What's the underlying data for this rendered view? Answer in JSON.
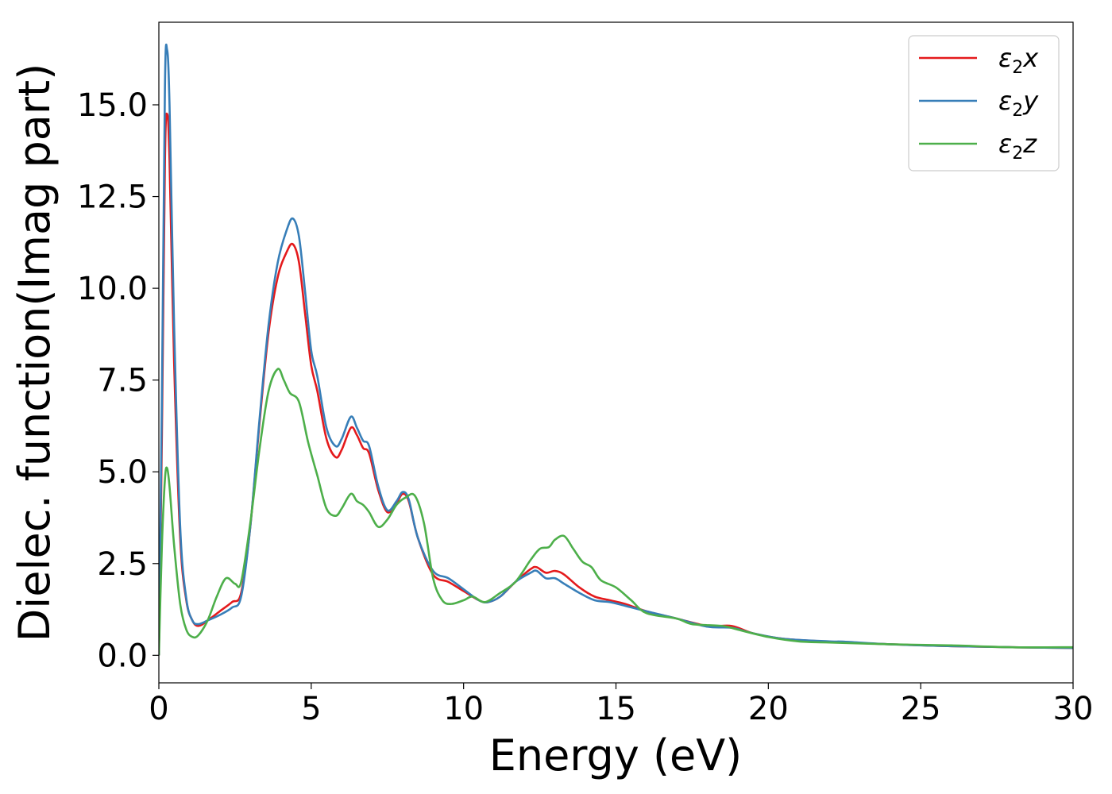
{
  "chart_data": {
    "type": "line",
    "xlabel": "Energy (eV)",
    "ylabel": "Dielec. function(Imag part)",
    "xlim": [
      0,
      30
    ],
    "ylim": [
      -0.75,
      17.25
    ],
    "xticks": [
      0,
      5,
      10,
      15,
      20,
      25,
      30
    ],
    "xtick_labels": [
      "0",
      "5",
      "10",
      "15",
      "20",
      "25",
      "30"
    ],
    "yticks": [
      0.0,
      2.5,
      5.0,
      7.5,
      10.0,
      12.5,
      15.0
    ],
    "ytick_labels": [
      "0.0",
      "2.5",
      "5.0",
      "7.5",
      "10.0",
      "12.5",
      "15.0"
    ],
    "grid": false,
    "legend_position": "top-right",
    "series": [
      {
        "name": "ε2x",
        "legend_base": "ε",
        "legend_sub": "2",
        "legend_tail": "x",
        "color": "#e41a1c",
        "points": [
          [
            0,
            0
          ],
          [
            0.1,
            6
          ],
          [
            0.2,
            13.5
          ],
          [
            0.27,
            14.75
          ],
          [
            0.35,
            13.5
          ],
          [
            0.5,
            8
          ],
          [
            0.7,
            3.2
          ],
          [
            0.9,
            1.5
          ],
          [
            1.1,
            0.95
          ],
          [
            1.3,
            0.8
          ],
          [
            1.6,
            0.95
          ],
          [
            2,
            1.2
          ],
          [
            2.4,
            1.45
          ],
          [
            2.7,
            1.7
          ],
          [
            3.0,
            3.5
          ],
          [
            3.3,
            6.3
          ],
          [
            3.6,
            8.8
          ],
          [
            3.9,
            10.3
          ],
          [
            4.2,
            11.0
          ],
          [
            4.4,
            11.2
          ],
          [
            4.6,
            10.7
          ],
          [
            4.8,
            9.3
          ],
          [
            5.0,
            7.9
          ],
          [
            5.2,
            7.2
          ],
          [
            5.5,
            5.9
          ],
          [
            5.8,
            5.4
          ],
          [
            6.0,
            5.6
          ],
          [
            6.3,
            6.2
          ],
          [
            6.5,
            6.0
          ],
          [
            6.7,
            5.65
          ],
          [
            6.9,
            5.5
          ],
          [
            7.2,
            4.5
          ],
          [
            7.5,
            3.9
          ],
          [
            7.8,
            4.15
          ],
          [
            8.0,
            4.4
          ],
          [
            8.2,
            4.2
          ],
          [
            8.5,
            3.2
          ],
          [
            9.0,
            2.2
          ],
          [
            9.5,
            2.0
          ],
          [
            10.0,
            1.75
          ],
          [
            10.5,
            1.5
          ],
          [
            10.8,
            1.45
          ],
          [
            11.2,
            1.6
          ],
          [
            11.7,
            2.0
          ],
          [
            12.2,
            2.35
          ],
          [
            12.4,
            2.4
          ],
          [
            12.7,
            2.25
          ],
          [
            13.0,
            2.3
          ],
          [
            13.3,
            2.2
          ],
          [
            13.8,
            1.85
          ],
          [
            14.3,
            1.6
          ],
          [
            14.8,
            1.5
          ],
          [
            15.3,
            1.4
          ],
          [
            16.0,
            1.2
          ],
          [
            17.0,
            1.0
          ],
          [
            18.0,
            0.8
          ],
          [
            18.8,
            0.8
          ],
          [
            19.5,
            0.6
          ],
          [
            20.5,
            0.45
          ],
          [
            22.0,
            0.37
          ],
          [
            22.5,
            0.35
          ],
          [
            24.0,
            0.3
          ],
          [
            26.0,
            0.25
          ],
          [
            28.0,
            0.22
          ],
          [
            30.0,
            0.2
          ]
        ]
      },
      {
        "name": "ε2y",
        "legend_base": "ε",
        "legend_sub": "2",
        "legend_tail": "y",
        "color": "#377eb8",
        "points": [
          [
            0,
            0
          ],
          [
            0.1,
            7
          ],
          [
            0.2,
            15.5
          ],
          [
            0.27,
            16.5
          ],
          [
            0.35,
            15
          ],
          [
            0.5,
            9
          ],
          [
            0.7,
            3.5
          ],
          [
            0.9,
            1.55
          ],
          [
            1.1,
            0.95
          ],
          [
            1.3,
            0.85
          ],
          [
            1.6,
            0.95
          ],
          [
            2,
            1.1
          ],
          [
            2.4,
            1.3
          ],
          [
            2.7,
            1.6
          ],
          [
            3.0,
            3.5
          ],
          [
            3.3,
            6.4
          ],
          [
            3.6,
            9.0
          ],
          [
            3.9,
            10.7
          ],
          [
            4.2,
            11.6
          ],
          [
            4.4,
            11.9
          ],
          [
            4.6,
            11.4
          ],
          [
            4.8,
            9.9
          ],
          [
            5.0,
            8.3
          ],
          [
            5.2,
            7.6
          ],
          [
            5.5,
            6.2
          ],
          [
            5.8,
            5.7
          ],
          [
            6.0,
            5.9
          ],
          [
            6.3,
            6.5
          ],
          [
            6.5,
            6.2
          ],
          [
            6.7,
            5.85
          ],
          [
            6.9,
            5.7
          ],
          [
            7.2,
            4.6
          ],
          [
            7.5,
            3.95
          ],
          [
            7.8,
            4.2
          ],
          [
            8.0,
            4.45
          ],
          [
            8.2,
            4.25
          ],
          [
            8.5,
            3.2
          ],
          [
            9.0,
            2.3
          ],
          [
            9.5,
            2.1
          ],
          [
            10.0,
            1.8
          ],
          [
            10.5,
            1.5
          ],
          [
            10.8,
            1.45
          ],
          [
            11.2,
            1.6
          ],
          [
            11.7,
            2.0
          ],
          [
            12.2,
            2.25
          ],
          [
            12.4,
            2.3
          ],
          [
            12.7,
            2.1
          ],
          [
            13.0,
            2.1
          ],
          [
            13.3,
            1.95
          ],
          [
            13.8,
            1.7
          ],
          [
            14.3,
            1.5
          ],
          [
            14.8,
            1.45
          ],
          [
            15.3,
            1.35
          ],
          [
            16.0,
            1.2
          ],
          [
            17.0,
            1.0
          ],
          [
            18.0,
            0.78
          ],
          [
            18.8,
            0.75
          ],
          [
            19.5,
            0.6
          ],
          [
            20.5,
            0.45
          ],
          [
            22.0,
            0.38
          ],
          [
            22.5,
            0.37
          ],
          [
            24.0,
            0.3
          ],
          [
            26.0,
            0.25
          ],
          [
            28.0,
            0.22
          ],
          [
            30.0,
            0.2
          ]
        ]
      },
      {
        "name": "ε2z",
        "legend_base": "ε",
        "legend_sub": "2",
        "legend_tail": "z",
        "color": "#4daf4a",
        "points": [
          [
            0,
            0
          ],
          [
            0.1,
            3
          ],
          [
            0.2,
            4.8
          ],
          [
            0.27,
            5.1
          ],
          [
            0.35,
            4.6
          ],
          [
            0.5,
            3
          ],
          [
            0.7,
            1.4
          ],
          [
            0.9,
            0.7
          ],
          [
            1.1,
            0.5
          ],
          [
            1.3,
            0.55
          ],
          [
            1.6,
            0.95
          ],
          [
            1.9,
            1.6
          ],
          [
            2.2,
            2.1
          ],
          [
            2.5,
            1.95
          ],
          [
            2.7,
            2.0
          ],
          [
            3.0,
            3.6
          ],
          [
            3.3,
            5.6
          ],
          [
            3.6,
            7.2
          ],
          [
            3.9,
            7.8
          ],
          [
            4.1,
            7.5
          ],
          [
            4.3,
            7.15
          ],
          [
            4.6,
            6.9
          ],
          [
            4.9,
            5.8
          ],
          [
            5.2,
            4.9
          ],
          [
            5.5,
            4.0
          ],
          [
            5.8,
            3.8
          ],
          [
            6.0,
            4.0
          ],
          [
            6.3,
            4.4
          ],
          [
            6.5,
            4.2
          ],
          [
            6.7,
            4.1
          ],
          [
            6.9,
            3.9
          ],
          [
            7.2,
            3.5
          ],
          [
            7.5,
            3.7
          ],
          [
            7.8,
            4.1
          ],
          [
            8.1,
            4.3
          ],
          [
            8.4,
            4.35
          ],
          [
            8.7,
            3.6
          ],
          [
            9.0,
            2.1
          ],
          [
            9.3,
            1.5
          ],
          [
            9.6,
            1.4
          ],
          [
            10.0,
            1.5
          ],
          [
            10.3,
            1.6
          ],
          [
            10.7,
            1.45
          ],
          [
            11.2,
            1.7
          ],
          [
            11.7,
            2.0
          ],
          [
            12.2,
            2.6
          ],
          [
            12.5,
            2.9
          ],
          [
            12.8,
            2.95
          ],
          [
            13.0,
            3.15
          ],
          [
            13.3,
            3.25
          ],
          [
            13.6,
            2.9
          ],
          [
            13.9,
            2.55
          ],
          [
            14.2,
            2.4
          ],
          [
            14.5,
            2.05
          ],
          [
            15.0,
            1.85
          ],
          [
            15.5,
            1.5
          ],
          [
            16.0,
            1.15
          ],
          [
            17.0,
            1.0
          ],
          [
            17.5,
            0.85
          ],
          [
            18.5,
            0.8
          ],
          [
            19.0,
            0.7
          ],
          [
            20.0,
            0.5
          ],
          [
            21.0,
            0.38
          ],
          [
            22.0,
            0.35
          ],
          [
            24.0,
            0.3
          ],
          [
            26.0,
            0.27
          ],
          [
            28.0,
            0.22
          ],
          [
            30.0,
            0.22
          ]
        ]
      }
    ]
  }
}
